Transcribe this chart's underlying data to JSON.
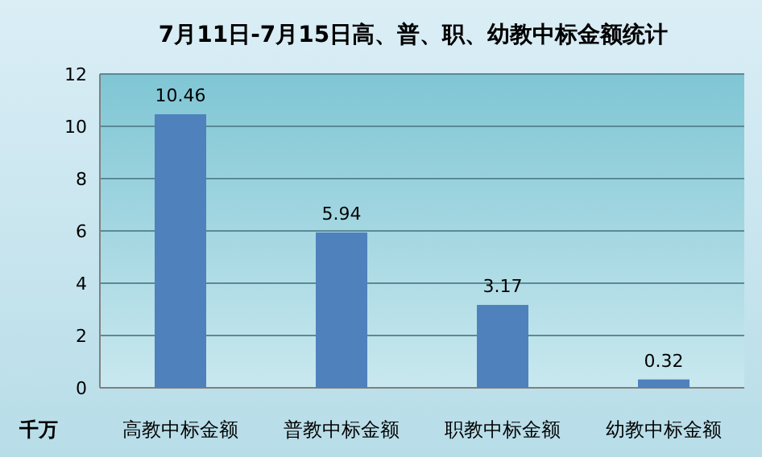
{
  "chart_data": {
    "type": "bar",
    "title": "7月11日-7月15日高、普、职、幼教中标金额统计",
    "ylabel": "千万",
    "categories": [
      "高教中标金额",
      "普教中标金额",
      "职教中标金额",
      "幼教中标金额"
    ],
    "values": [
      10.46,
      5.94,
      3.17,
      0.32
    ],
    "color": "#4f81bd",
    "ylim": [
      0,
      12
    ],
    "yticks": [
      0,
      2,
      4,
      6,
      8,
      10,
      12
    ],
    "grid": "y",
    "data_labels": true
  }
}
